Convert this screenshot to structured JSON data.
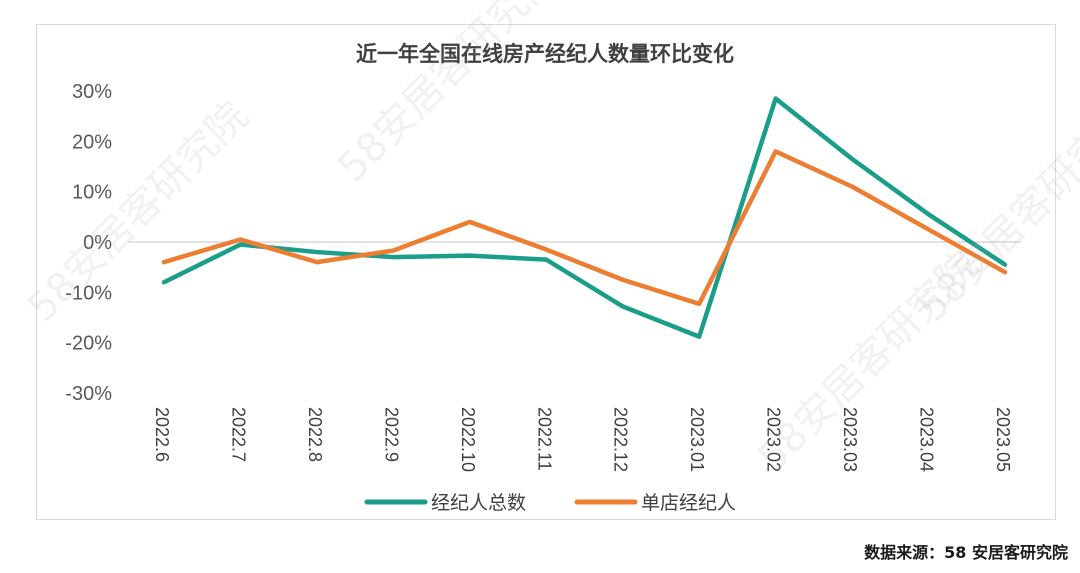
{
  "chart_data": {
    "type": "line",
    "title": "近一年全国在线房产经纪人数量环比变化",
    "categories": [
      "2022.6",
      "2022.7",
      "2022.8",
      "2022.9",
      "2022.10",
      "2022.11",
      "2022.12",
      "2023.01",
      "2023.02",
      "2023.03",
      "2023.04",
      "2023.05"
    ],
    "yticks": [
      "30%",
      "20%",
      "10%",
      "0%",
      "-10%",
      "-20%",
      "-30%"
    ],
    "ylim": [
      -30,
      30
    ],
    "grid": false,
    "zero_line": true,
    "legend_position": "bottom",
    "series": [
      {
        "name": "经纪人总数",
        "color": "#1a9e8a",
        "values": [
          -8,
          -0.5,
          -2,
          -3,
          -2.7,
          -3.5,
          -12.8,
          -18.8,
          28.5,
          16.5,
          5.5,
          -4.5
        ]
      },
      {
        "name": "单店经纪人",
        "color": "#ed7d31",
        "values": [
          -4,
          0.5,
          -4,
          -1.7,
          4,
          -1.5,
          -7.5,
          -12.3,
          18,
          11,
          2.5,
          -6
        ]
      }
    ]
  },
  "source": "数据来源：58 安居客研究院",
  "watermarks": [
    "58安居客研究院",
    "58安居客研究院",
    "58安居客研究院",
    "58安居客研究院"
  ]
}
